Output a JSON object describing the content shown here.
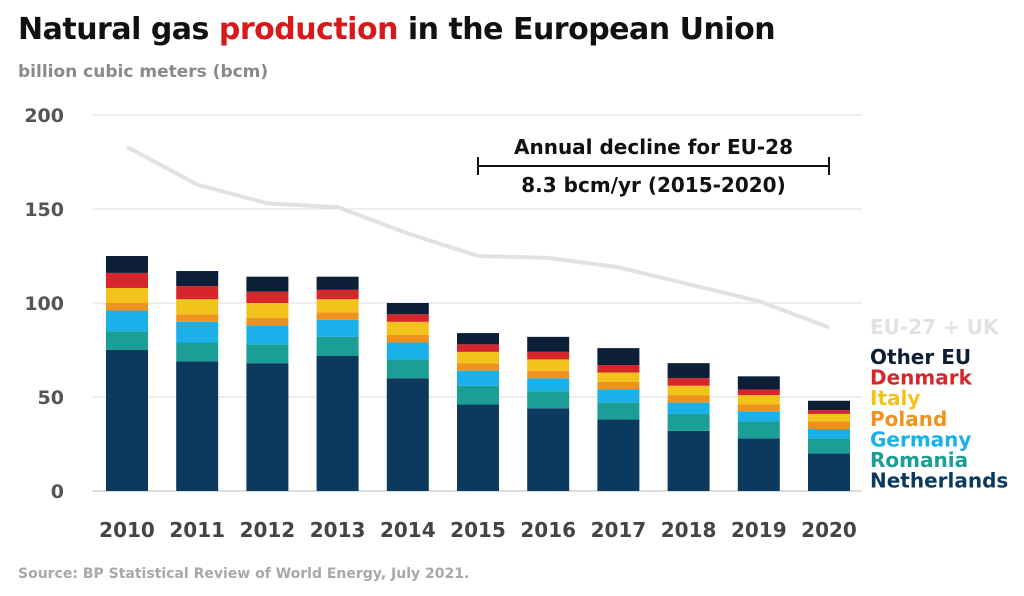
{
  "title": {
    "before": "Natural gas ",
    "highlight": "production",
    "after": " in the European Union",
    "highlight_color": "#d7191c"
  },
  "subtitle": "billion cubic meters (bcm)",
  "source": "Source: BP Statistical Review of World Energy, July 2021.",
  "annotation": {
    "line1": "Annual decline for EU-28",
    "line2": "8.3 bcm/yr (2015-2020)",
    "from_year": "2015",
    "to_year": "2020"
  },
  "chart_data": {
    "type": "bar",
    "stacked": true,
    "categories": [
      "2010",
      "2011",
      "2012",
      "2013",
      "2014",
      "2015",
      "2016",
      "2017",
      "2018",
      "2019",
      "2020"
    ],
    "ylim": [
      0,
      200
    ],
    "yticks": [
      0,
      50,
      100,
      150,
      200
    ],
    "grid": true,
    "legend_placement": "right",
    "series": [
      {
        "name": "Netherlands",
        "color": "#0b3a5e",
        "values": [
          75,
          69,
          68,
          72,
          60,
          46,
          44,
          38,
          32,
          28,
          20
        ]
      },
      {
        "name": "Romania",
        "color": "#1a9e96",
        "values": [
          10,
          10,
          10,
          10,
          10,
          10,
          9,
          9,
          9,
          9,
          8
        ]
      },
      {
        "name": "Germany",
        "color": "#1ab0ea",
        "values": [
          11,
          11,
          10,
          9,
          9,
          8,
          7,
          7,
          6,
          5,
          5
        ]
      },
      {
        "name": "Poland",
        "color": "#f0931e",
        "values": [
          4,
          4,
          4,
          4,
          4,
          4,
          4,
          4,
          4,
          4,
          4
        ]
      },
      {
        "name": "Italy",
        "color": "#f2c31a",
        "values": [
          8,
          8,
          8,
          7,
          7,
          6,
          6,
          5,
          5,
          5,
          4
        ]
      },
      {
        "name": "Denmark",
        "color": "#d7262b",
        "values": [
          8,
          7,
          6,
          5,
          4,
          4,
          4,
          4,
          4,
          3,
          2
        ]
      },
      {
        "name": "Other EU",
        "color": "#0c1f36",
        "values": [
          9,
          8,
          8,
          7,
          6,
          6,
          8,
          9,
          8,
          7,
          5
        ]
      }
    ],
    "line": {
      "name": "EU-27 + UK",
      "color": "#e2e2e2",
      "values": [
        183,
        163,
        153,
        151,
        137,
        125,
        124,
        119,
        110,
        101,
        87
      ]
    }
  }
}
